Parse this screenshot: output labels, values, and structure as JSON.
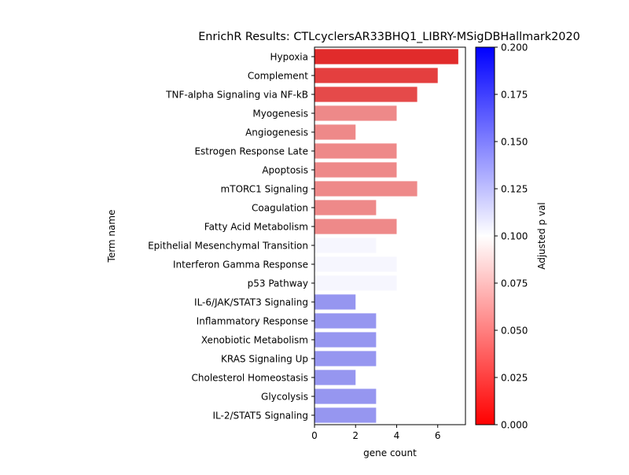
{
  "chart_data": {
    "type": "bar",
    "orientation": "horizontal",
    "title": "EnrichR Results: CTLcyclersAR33BHQ1_LIBRY-MSigDBHallmark2020",
    "xlabel": "gene count",
    "ylabel": "Term name",
    "xlim": [
      0,
      7.35
    ],
    "xticks": [
      "0",
      "2",
      "4",
      "6"
    ],
    "categories": [
      "Hypoxia",
      "Complement",
      "TNF-alpha Signaling via NF-kB",
      "Myogenesis",
      "Angiogenesis",
      "Estrogen Response Late",
      "Apoptosis",
      "mTORC1 Signaling",
      "Coagulation",
      "Fatty Acid Metabolism",
      "Epithelial Mesenchymal Transition",
      "Interferon Gamma Response",
      "p53 Pathway",
      "IL-6/JAK/STAT3 Signaling",
      "Inflammatory Response",
      "Xenobiotic Metabolism",
      "KRAS Signaling Up",
      "Cholesterol Homeostasis",
      "Glycolysis",
      "IL-2/STAT5 Signaling"
    ],
    "values": [
      7,
      6,
      5,
      4,
      2,
      4,
      4,
      5,
      3,
      4,
      3,
      4,
      4,
      2,
      3,
      3,
      3,
      2,
      3,
      3
    ],
    "adjusted_p": [
      0.005,
      0.014,
      0.019,
      0.047,
      0.047,
      0.047,
      0.047,
      0.047,
      0.047,
      0.047,
      0.104,
      0.104,
      0.104,
      0.147,
      0.147,
      0.147,
      0.147,
      0.147,
      0.147,
      0.147
    ],
    "colorbar": {
      "label": "Adjusted p val",
      "range": [
        0,
        0.2
      ],
      "ticks": [
        "0.000",
        "0.025",
        "0.050",
        "0.075",
        "0.100",
        "0.125",
        "0.150",
        "0.175",
        "0.200"
      ],
      "colors": [
        "#ff0000",
        "#ffffff",
        "#0000ff"
      ]
    },
    "legend": "colorbar-right",
    "grid": false
  }
}
